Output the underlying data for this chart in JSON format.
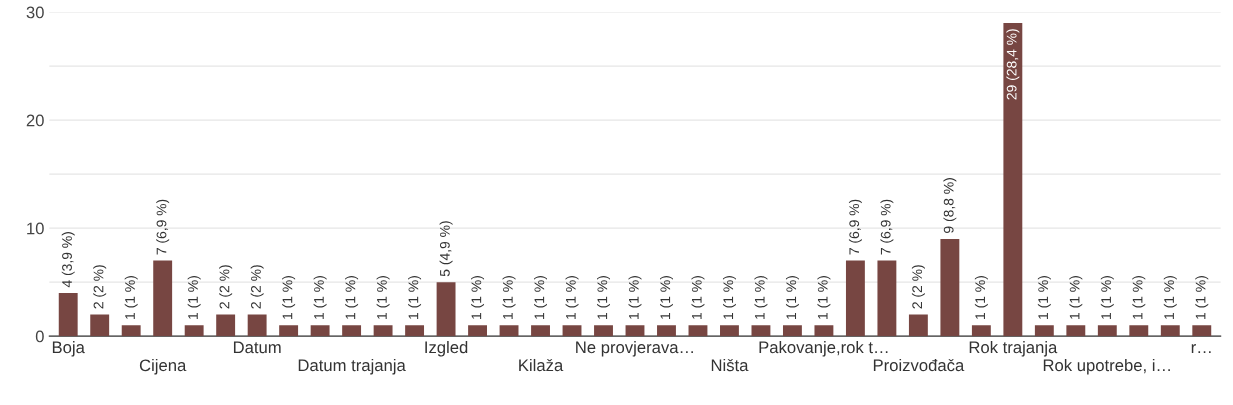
{
  "chart_data": {
    "type": "bar",
    "categories": [
      "Boja",
      null,
      null,
      "Cijena",
      null,
      null,
      "Datum",
      null,
      null,
      "Datum trajanja",
      null,
      null,
      "Izgled",
      null,
      null,
      "Kilaža",
      null,
      null,
      "Ne provjerava…",
      null,
      null,
      "Ništa",
      null,
      null,
      "Pakovanje,rok t…",
      null,
      null,
      "Proizvođača",
      null,
      null,
      "Rok trajanja",
      null,
      null,
      "Rok upotrebe, i…",
      null,
      null,
      "r…"
    ],
    "values": [
      4,
      2,
      1,
      7,
      1,
      2,
      2,
      1,
      1,
      1,
      1,
      1,
      5,
      1,
      1,
      1,
      1,
      1,
      1,
      1,
      1,
      1,
      1,
      1,
      1,
      7,
      7,
      2,
      9,
      1,
      29,
      1,
      1,
      1,
      1,
      1,
      1
    ],
    "value_labels": [
      "4 (3,9 %)",
      "2 (2 %)",
      "1 (1 %)",
      "7 (6,9 %)",
      "1 (1 %)",
      "2 (2 %)",
      "2 (2 %)",
      "1 (1 %)",
      "1 (1 %)",
      "1 (1 %)",
      "1 (1 %)",
      "1 (1 %)",
      "5 (4,9 %)",
      "1 (1 %)",
      "1 (1 %)",
      "1 (1 %)",
      "1 (1 %)",
      "1 (1 %)",
      "1 (1 %)",
      "1 (1 %)",
      "1 (1 %)",
      "1 (1 %)",
      "1 (1 %)",
      "1 (1 %)",
      "1 (1 %)",
      "7 (6,9 %)",
      "7 (6,9 %)",
      "2 (2 %)",
      "9 (8,8 %)",
      "1 (1 %)",
      "29 (28,4 %)",
      "1 (1 %)",
      "1 (1 %)",
      "1 (1 %)",
      "1 (1 %)",
      "1 (1 %)",
      "1 (1 %)"
    ],
    "color": "#774642",
    "ylim": [
      0,
      30
    ],
    "yticks": [
      0,
      {
        "value": 5,
        "label": null
      },
      10,
      {
        "value": 15,
        "label": null
      },
      20,
      {
        "value": 25,
        "label": null
      },
      30
    ],
    "grid": "y"
  }
}
